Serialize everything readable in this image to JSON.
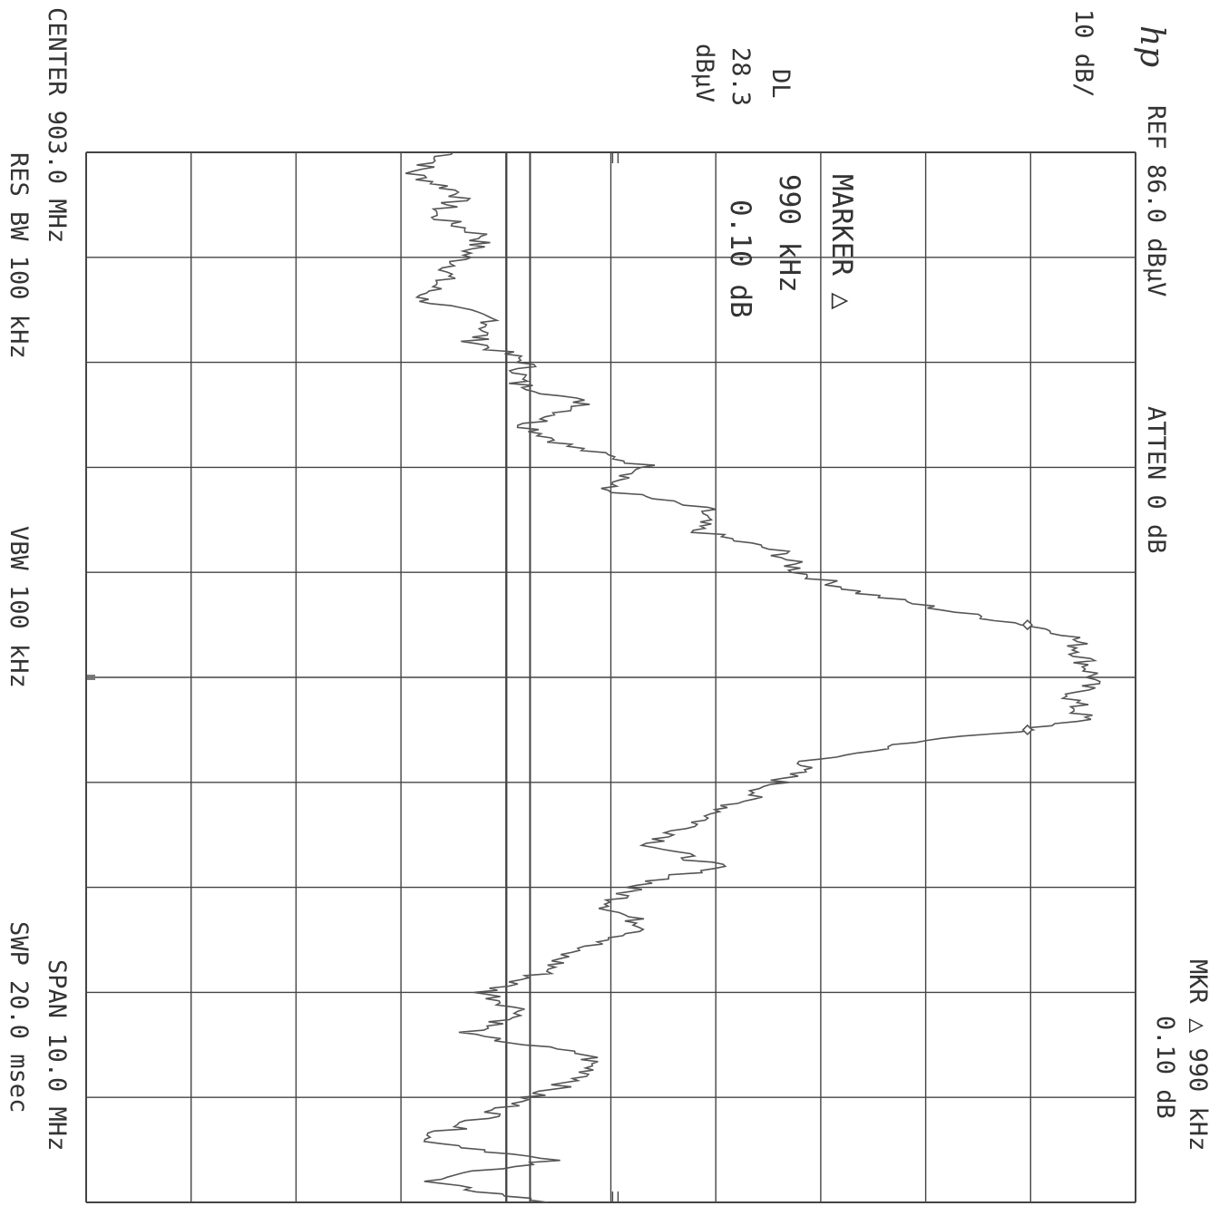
{
  "header": {
    "logo": "hp",
    "scale": "10 dB/",
    "ref": "REF  86.0 dBµV",
    "atten": "ATTEN 0 dB",
    "mkr_line1": "MKR △ 990 kHz",
    "mkr_line2": "0.10 dB"
  },
  "display_line": {
    "label": "DL",
    "value": "28.3",
    "unit": "dBµV"
  },
  "marker_box": {
    "line1": "MARKER △",
    "line2": "990 kHz",
    "line3": "0.10 dB"
  },
  "footer": {
    "center": "CENTER 903.0 MHz",
    "span": "SPAN 10.0 MHz",
    "res_bw": "RES BW 100 kHz",
    "vbw": "VBW 100 kHz",
    "swp": "SWP 20.0 msec"
  },
  "colors": {
    "trace": "#555555",
    "grid": "#444444",
    "text": "#333333"
  },
  "chart_data": {
    "type": "line",
    "orientation": "rotated-90-clockwise",
    "x_unit": "MHz",
    "y_unit": "dBµV",
    "xlim": [
      898.0,
      908.0
    ],
    "ylim": [
      -14.0,
      86.0
    ],
    "x_divisions": 10,
    "y_divisions": 10,
    "grid": true,
    "display_line_dBuV": 28.3,
    "markers": [
      {
        "x": 902.5,
        "y": 75.7
      },
      {
        "x": 903.5,
        "y": 75.7
      }
    ],
    "series": [
      {
        "x": [
          898.0,
          898.2,
          898.4,
          898.6,
          898.8,
          899.0,
          899.2,
          899.4,
          899.6,
          899.8,
          900.0,
          900.2,
          900.4,
          900.6,
          900.8,
          901.0,
          901.2,
          901.4,
          901.6,
          901.8,
          902.0,
          902.2,
          902.4,
          902.5,
          902.6,
          902.8,
          903.0,
          903.2,
          903.4,
          903.5,
          903.6,
          903.8,
          904.0,
          904.2,
          904.4,
          904.6,
          904.8,
          905.0,
          905.2,
          905.4,
          905.6,
          905.8,
          906.0,
          906.2,
          906.4,
          906.6,
          906.8,
          907.0,
          907.2,
          907.4,
          907.6,
          907.8,
          908.0
        ],
        "values": [
          21,
          17,
          22,
          19,
          24,
          22,
          20,
          18,
          25,
          23,
          28,
          27,
          34,
          28,
          32,
          40,
          35,
          45,
          44,
          52,
          54,
          60,
          70,
          75.7,
          80,
          81,
          82,
          80,
          81,
          75.7,
          66,
          55,
          52,
          48,
          44,
          40,
          46,
          38,
          36,
          40,
          32,
          30,
          24,
          28,
          22,
          34,
          34,
          28,
          24,
          18,
          30,
          18,
          30
        ]
      }
    ]
  }
}
